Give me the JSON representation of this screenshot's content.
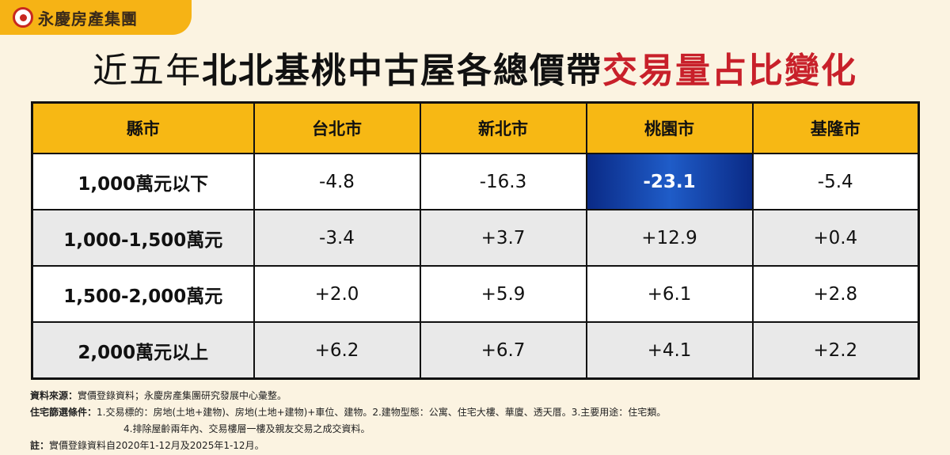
{
  "brand": {
    "name": "永慶房產集團"
  },
  "title": {
    "part1": "近五年",
    "part2": "北北基桃中古屋各總價帶",
    "part3": "交易量占比變化"
  },
  "table": {
    "headers": [
      "縣市",
      "台北市",
      "新北市",
      "桃園市",
      "基隆市"
    ],
    "rows": [
      {
        "label": "1,000萬元以下",
        "values": [
          "-4.8",
          "-16.3",
          "-23.1",
          "-5.4"
        ]
      },
      {
        "label": "1,000-1,500萬元",
        "values": [
          "-3.4",
          "+3.7",
          "+12.9",
          "+0.4"
        ]
      },
      {
        "label": "1,500-2,000萬元",
        "values": [
          "+2.0",
          "+5.9",
          "+6.1",
          "+2.8"
        ]
      },
      {
        "label": "2,000萬元以上",
        "values": [
          "+6.2",
          "+6.7",
          "+4.1",
          "+2.2"
        ]
      }
    ],
    "highlight_color": "#1a4fb8"
  },
  "chart_data": {
    "type": "table",
    "columns": [
      "台北市",
      "新北市",
      "桃園市",
      "基隆市"
    ],
    "rows": [
      "1,000萬元以下",
      "1,000-1,500萬元",
      "1,500-2,000萬元",
      "2,000萬元以上"
    ],
    "values": [
      [
        -4.8,
        -16.3,
        -23.1,
        -5.4
      ],
      [
        -3.4,
        3.7,
        12.9,
        0.4
      ],
      [
        2.0,
        5.9,
        6.1,
        2.8
      ],
      [
        6.2,
        6.7,
        4.1,
        2.2
      ]
    ],
    "title": "近五年北北基桃中古屋各總價帶交易量占比變化"
  },
  "notes": {
    "source_key": "資料來源：",
    "source_text": "實價登錄資料；永慶房產集團研究發展中心彙整。",
    "criteria_key": "住宅篩選條件：",
    "criteria_text1": "1.交易標的：房地(土地+建物)、房地(土地+建物)+車位、建物。2.建物型態：公寓、住宅大樓、華廈、透天厝。3.主要用途：住宅類。",
    "criteria_text2": "4.排除屋齡兩年內、交易樓層一樓及親友交易之成交資料。",
    "note_key": "註：",
    "note_text": "實價登錄資料自2020年1-12月及2025年1-12月。"
  }
}
